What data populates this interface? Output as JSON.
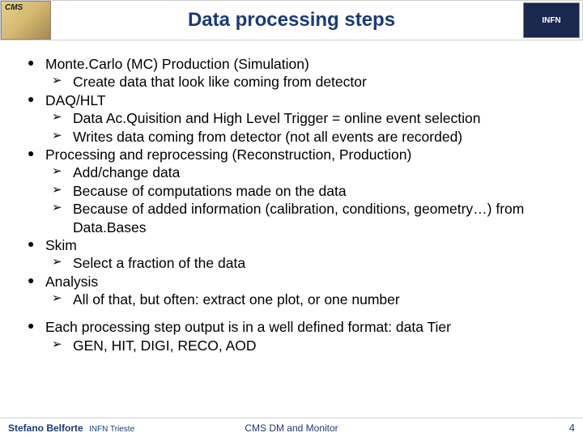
{
  "header": {
    "title": "Data processing steps",
    "logo_left_text": "",
    "logo_right_text": "INFN"
  },
  "bullets": {
    "b1": "Monte.Carlo (MC) Production (Simulation)",
    "b1_1": "Create data that look like coming from detector",
    "b2": "DAQ/HLT",
    "b2_1": "Data Ac.Quisition and High Level Trigger = online event selection",
    "b2_2": "Writes data coming from detector (not all events are recorded)",
    "b3": "Processing and reprocessing (Reconstruction, Production)",
    "b3_1": "Add/change data",
    "b3_2": "Because of computations made on the data",
    "b3_3": "Because of added information (calibration, conditions, geometry…) from  Data.Bases",
    "b4": "Skim",
    "b4_1": "Select a fraction of the data",
    "b5": "Analysis",
    "b5_1": "All of that, but often: extract one plot, or one number",
    "b6": "Each processing step output is in a well defined format: data Tier",
    "b6_1": "GEN, HIT, DIGI, RECO, AOD"
  },
  "footer": {
    "author": "Stefano Belforte",
    "affiliation": "INFN Trieste",
    "center": "CMS DM and Monitor",
    "page": "4"
  },
  "colors": {
    "title_color": "#1a3a7a",
    "text_color": "#000000",
    "logo_right_bg": "#1a2850",
    "footer_color": "#1a3a7a"
  }
}
